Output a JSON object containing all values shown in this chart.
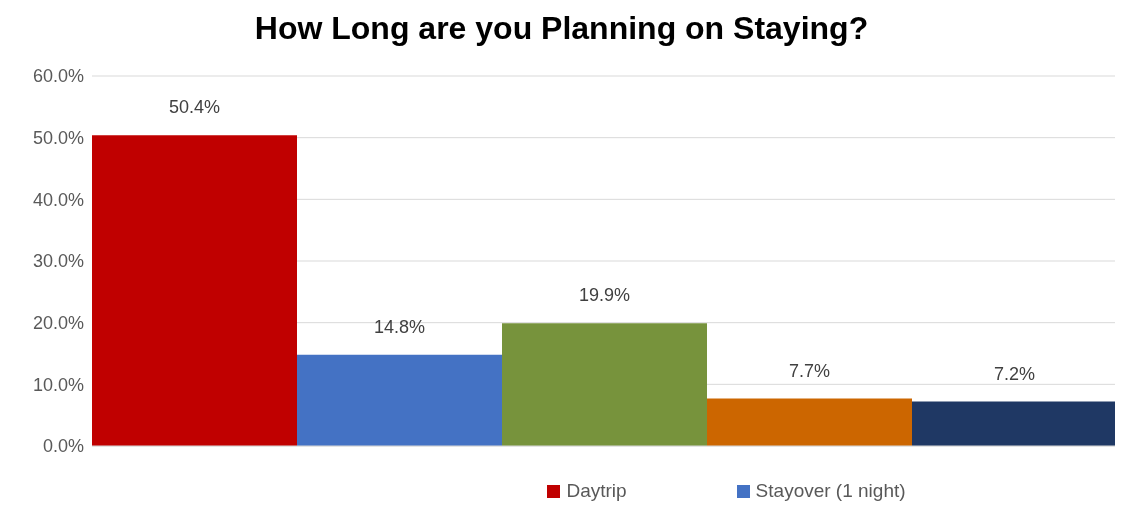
{
  "chart_data": {
    "type": "bar",
    "title": "How Long are you Planning on Staying?",
    "categories": [
      null
    ],
    "series": [
      {
        "name": "Daytrip",
        "color": "#c00000",
        "values": [
          50.4
        ],
        "value_labels": [
          "50.4%"
        ]
      },
      {
        "name": "Stayover (1 night)",
        "color": "#4472c4",
        "values": [
          14.8
        ],
        "value_labels": [
          "14.8%"
        ]
      },
      {
        "color": "#77933c",
        "values": [
          19.9
        ],
        "value_labels": [
          "19.9%"
        ]
      },
      {
        "color": "#cc6600",
        "values": [
          7.7
        ],
        "value_labels": [
          "7.7%"
        ]
      },
      {
        "color": "#1f3864",
        "values": [
          7.2
        ],
        "value_labels": [
          "7.2%"
        ]
      }
    ],
    "ylim": [
      0,
      60
    ],
    "yticks": [
      {
        "value": 0,
        "label": "0.0%"
      },
      {
        "value": 10,
        "label": "10.0%"
      },
      {
        "value": 20,
        "label": "20.0%"
      },
      {
        "value": 30,
        "label": "30.0%"
      },
      {
        "value": 40,
        "label": "40.0%"
      },
      {
        "value": 50,
        "label": "50.0%"
      },
      {
        "value": 60,
        "label": "60.0%"
      }
    ],
    "grid": "y",
    "legend": "bottom"
  }
}
